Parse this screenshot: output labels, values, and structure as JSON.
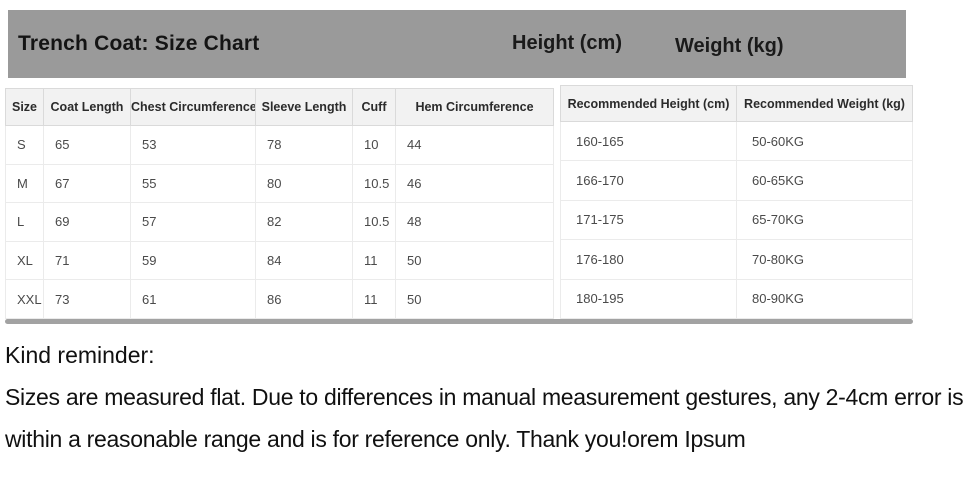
{
  "banner": {
    "title": "Trench Coat: Size Chart",
    "height_label": "Height (cm)",
    "weight_label": "Weight (kg)"
  },
  "size_table": {
    "headers": [
      "Size",
      "Coat Length",
      "Chest Circumference",
      "Sleeve Length",
      "Cuff",
      "Hem Circumference"
    ],
    "rows": [
      [
        "S",
        "65",
        "53",
        "78",
        "10",
        "44"
      ],
      [
        "M",
        "67",
        "55",
        "80",
        "10.5",
        "46"
      ],
      [
        "L",
        "69",
        "57",
        "82",
        "10.5",
        "48"
      ],
      [
        "XL",
        "71",
        "59",
        "84",
        "11",
        "50"
      ],
      [
        "XXL",
        "73",
        "61",
        "86",
        "11",
        "50"
      ]
    ]
  },
  "recommendation_table": {
    "headers": [
      "Recommended Height (cm)",
      "Recommended Weight (kg)"
    ],
    "rows": [
      [
        "160-165",
        "50-60KG"
      ],
      [
        "166-170",
        "60-65KG"
      ],
      [
        "171-175",
        "65-70KG"
      ],
      [
        "176-180",
        "70-80KG"
      ],
      [
        "180-195",
        "80-90KG"
      ]
    ]
  },
  "reminder": {
    "heading": "Kind reminder:",
    "body": "Sizes are measured flat. Due to differences in manual measurement gestures, any 2-4cm error is within a reasonable range and is for reference only. Thank you!orem Ipsum"
  },
  "colors": {
    "banner_bg": "#9a9a9a",
    "table_header_bg": "#f2f2f2",
    "scrollbar": "#a2a2a2"
  }
}
